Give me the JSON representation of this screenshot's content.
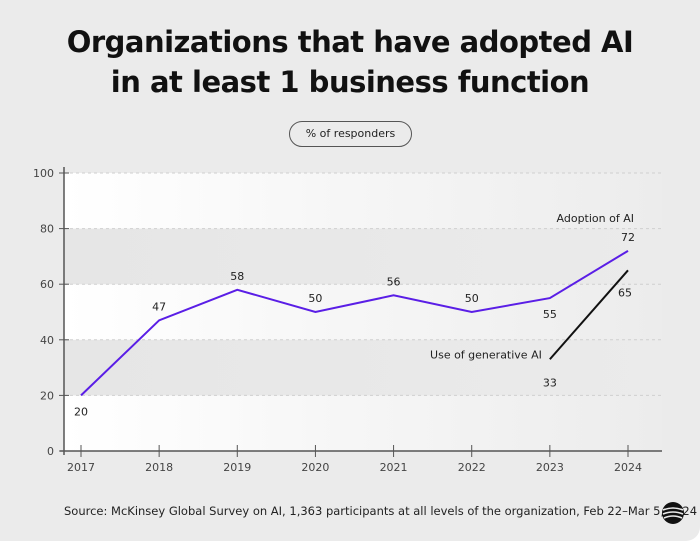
{
  "title_line1": "Organizations that have adopted AI",
  "title_line2": "in at least 1 business function",
  "unit_pill": "% of responders",
  "source": "Source: McKinsey Global Survey on AI, 1,363 participants at all levels of the organization, Feb 22–Mar 5, 2024",
  "chart_data": {
    "type": "line",
    "title": "Organizations that have adopted AI in at least 1 business function",
    "ylabel": "% of responders",
    "x": [
      "2017",
      "2018",
      "2019",
      "2020",
      "2021",
      "2022",
      "2023",
      "2024"
    ],
    "ylim": [
      0,
      100
    ],
    "yticks": [
      0,
      20,
      40,
      60,
      80,
      100
    ],
    "grid": true,
    "series": [
      {
        "name": "Adoption of AI",
        "color": "#5a1ee6",
        "values": [
          20,
          47,
          58,
          50,
          56,
          50,
          55,
          72
        ]
      },
      {
        "name": "Use of generative AI",
        "color": "#111111",
        "values": [
          null,
          null,
          null,
          null,
          null,
          null,
          33,
          65
        ]
      }
    ]
  }
}
